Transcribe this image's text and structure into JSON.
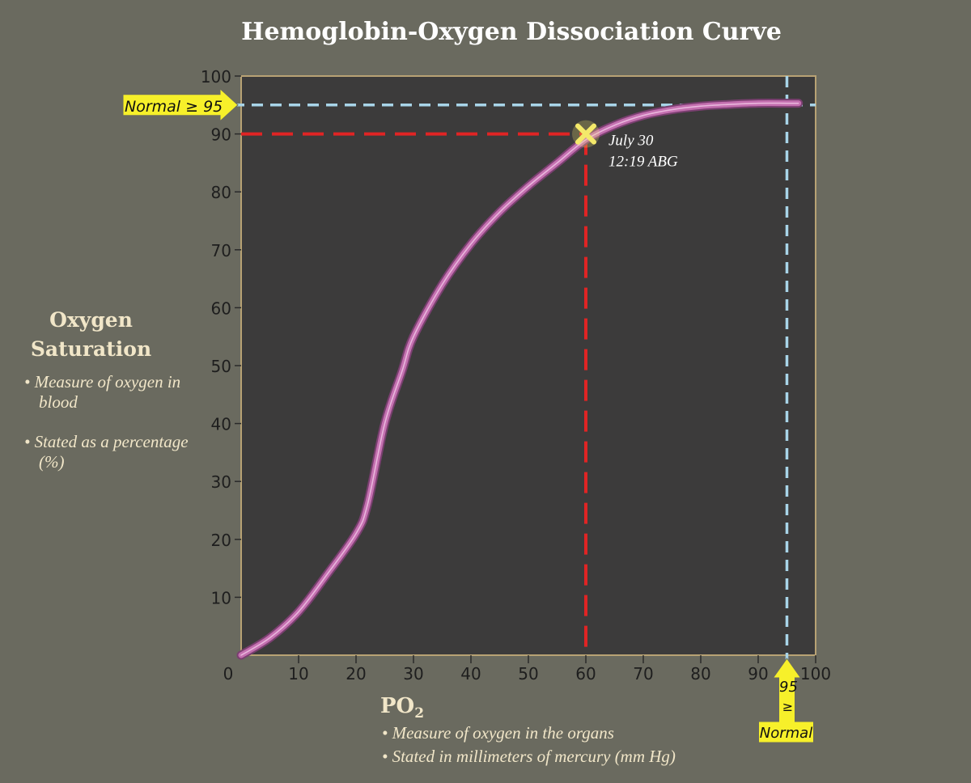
{
  "chart_data": {
    "type": "line",
    "title": "Hemoglobin-Oxygen Dissociation Curve",
    "xlabel": "PO",
    "xlabel_sub": "2",
    "ylabel_line1": "Oxygen",
    "ylabel_line2": "Saturation",
    "ylabel_notes": [
      "• Measure of oxygen in blood",
      "• Stated as a percentage (%)"
    ],
    "xlabel_notes": [
      "• Measure of oxygen in the organs",
      "• Stated in millimeters of mercury (mm Hg)"
    ],
    "xlim": [
      0,
      100
    ],
    "ylim": [
      0,
      100
    ],
    "x_ticks": [
      0,
      10,
      20,
      30,
      40,
      50,
      60,
      70,
      80,
      90,
      100
    ],
    "y_ticks": [
      10,
      20,
      30,
      40,
      50,
      60,
      70,
      80,
      90,
      100
    ],
    "series": [
      {
        "x": [
          0,
          5,
          10,
          15,
          20,
          22,
          25,
          28,
          30,
          35,
          40,
          45,
          50,
          55,
          60,
          65,
          70,
          75,
          80,
          85,
          90,
          95,
          97
        ],
        "y": [
          0,
          3,
          7.5,
          14,
          21,
          26,
          40,
          49,
          55,
          64,
          71,
          76.5,
          81,
          85,
          89,
          91.5,
          93.2,
          94.2,
          94.8,
          95.1,
          95.3,
          95.3,
          95.3
        ],
        "color": "#c470b0"
      }
    ],
    "marker": {
      "x": 60,
      "y": 90,
      "label_line1": "July 30",
      "label_line2": "12:19 ABG",
      "color": "#f4e96a"
    },
    "reference_lines": {
      "measured": {
        "x": 60,
        "y": 90,
        "color": "#e02424"
      },
      "normal": {
        "x": 95,
        "y": 95,
        "color": "#a8d4e8"
      }
    },
    "normal_y_callout": "Normal ≥ 95",
    "normal_x_callout": {
      "value": "95",
      "symbol": "≥",
      "label": "Normal"
    }
  },
  "colors": {
    "background": "#6a6a5f",
    "plot_area": "#3c3b3b",
    "plot_border": "#b8a274",
    "callout": "#f7f02a"
  }
}
